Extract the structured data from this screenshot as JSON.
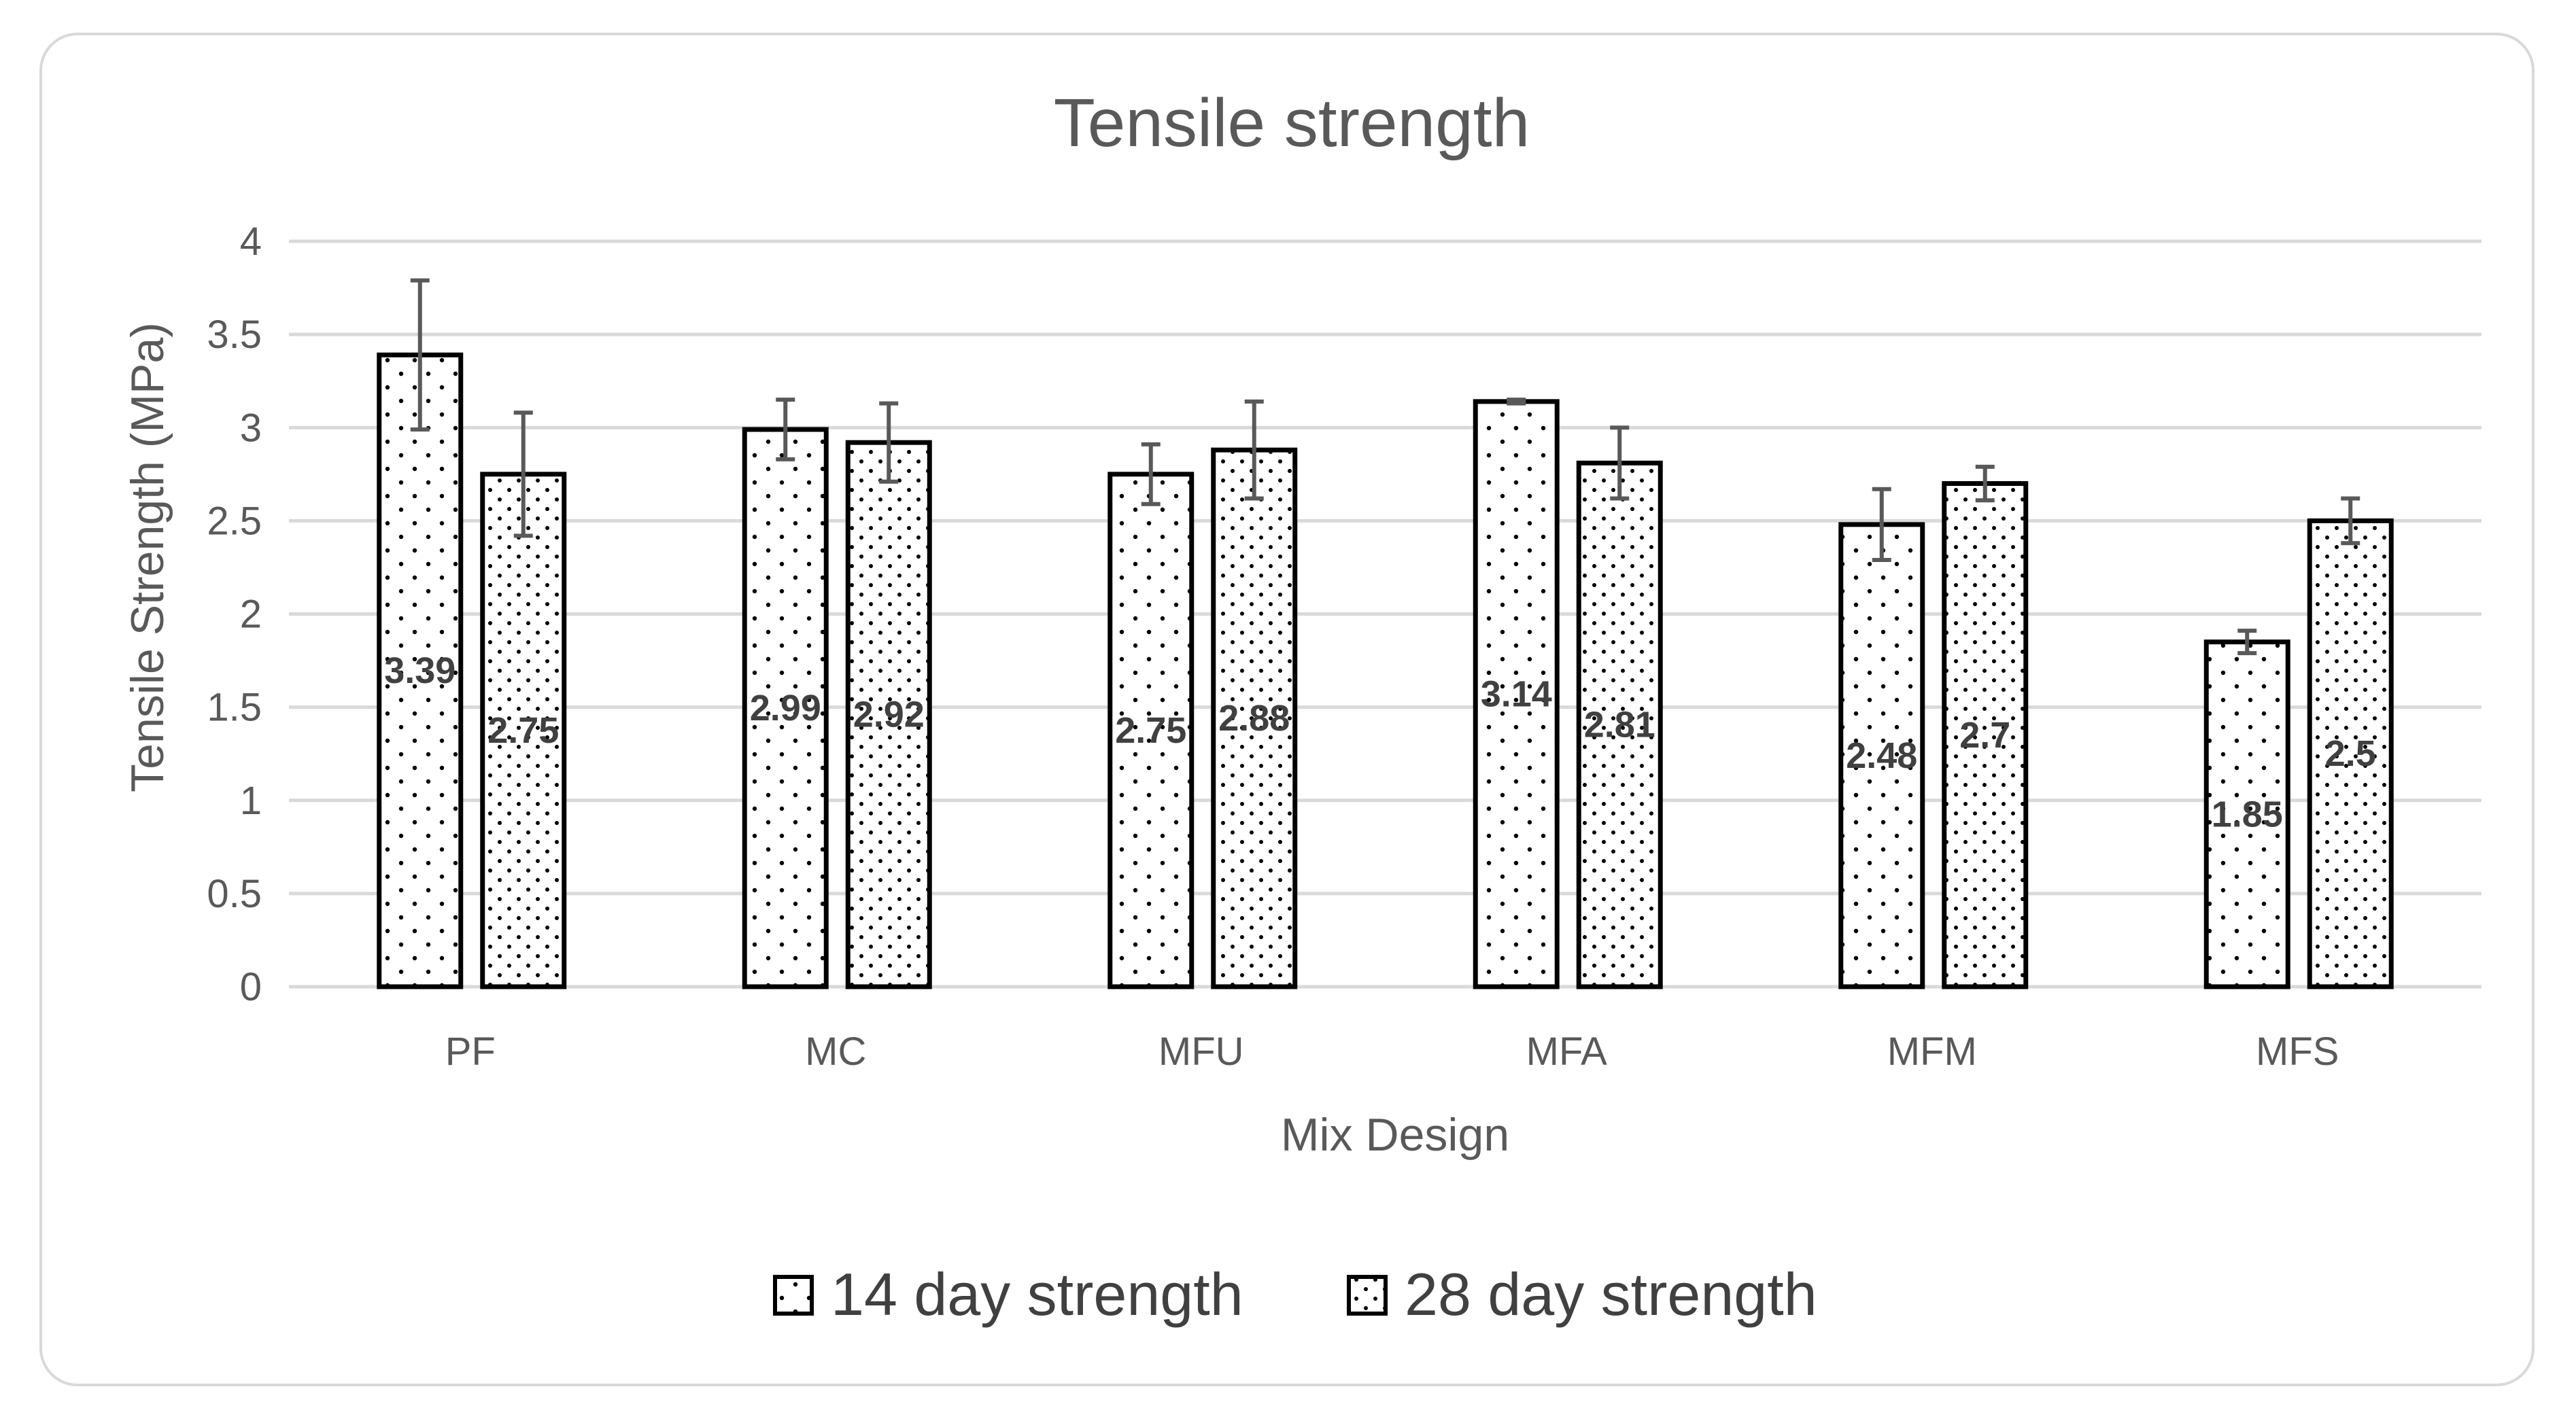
{
  "chart_data": {
    "type": "bar",
    "title": "Tensile strength",
    "xlabel": "Mix Design",
    "ylabel": "Tensile Strength (MPa)",
    "ylim": [
      0,
      4
    ],
    "yticks": [
      "0",
      "0.5",
      "1",
      "1.5",
      "2",
      "2.5",
      "3",
      "3.5",
      "4"
    ],
    "categories": [
      "PF",
      "MC",
      "MFU",
      "MFA",
      "MFM",
      "MFS"
    ],
    "grid": true,
    "legend_position": "bottom",
    "series": [
      {
        "name": "14 day strength",
        "values": [
          3.39,
          2.99,
          2.75,
          3.14,
          2.48,
          1.85
        ],
        "labels": [
          "3.39",
          "2.99",
          "2.75",
          "3.14",
          "2.48",
          "1.85"
        ],
        "error": [
          0.4,
          0.16,
          0.16,
          0.01,
          0.19,
          0.06
        ],
        "pattern": "sparse-dots",
        "color": "#ffffff"
      },
      {
        "name": "28 day strength",
        "values": [
          2.75,
          2.92,
          2.88,
          2.81,
          2.7,
          2.5
        ],
        "labels": [
          "2.75",
          "2.92",
          "2.88",
          "2.81",
          "2.7",
          "2.5"
        ],
        "error": [
          0.33,
          0.21,
          0.26,
          0.19,
          0.09,
          0.12
        ],
        "pattern": "dense-dots",
        "color": "#ffffff"
      }
    ]
  }
}
